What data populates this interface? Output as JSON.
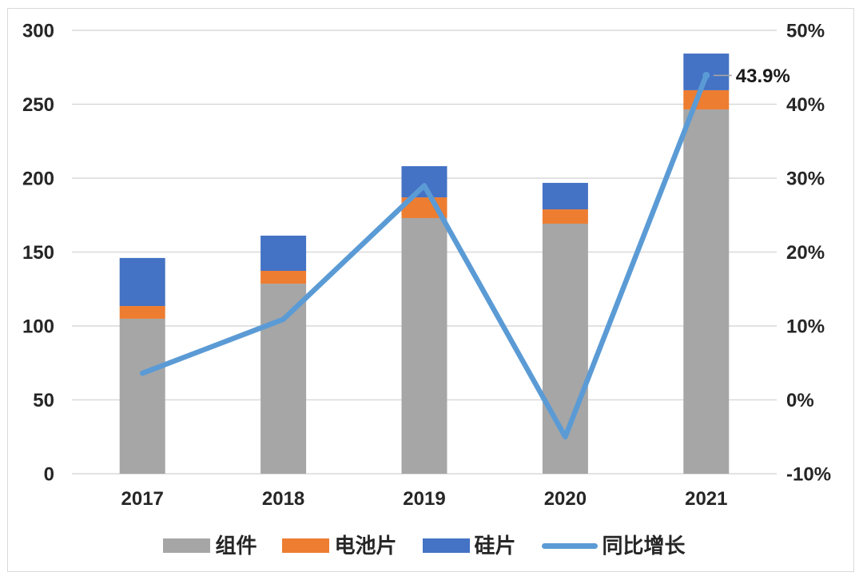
{
  "chart_data": {
    "type": "combo-stacked-bar-line",
    "categories": [
      "2017",
      "2018",
      "2019",
      "2020",
      "2021"
    ],
    "bar_series": [
      {
        "key": "module",
        "name": "组件",
        "color": "#a6a6a6",
        "values": [
          104.9,
          128.6,
          173.0,
          169.2,
          246.5
        ]
      },
      {
        "key": "cell",
        "name": "电池片",
        "color": "#ed7d31",
        "values": [
          8.6,
          8.7,
          14.0,
          9.7,
          13.0
        ]
      },
      {
        "key": "wafer",
        "name": "硅片",
        "color": "#4472c4",
        "values": [
          32.5,
          23.8,
          21.1,
          17.9,
          24.8
        ]
      }
    ],
    "line_series": {
      "key": "yoy-growth",
      "name": "同比增长",
      "color": "#5b9bd5",
      "values_pct": [
        3.6,
        10.9,
        29.0,
        -5.0,
        43.9
      ]
    },
    "left_axis": {
      "min": 0,
      "max": 300,
      "step": 50,
      "tick_labels": [
        "0",
        "50",
        "100",
        "150",
        "200",
        "250",
        "300"
      ]
    },
    "right_axis": {
      "min": -10,
      "max": 50,
      "step": 10,
      "tick_labels": [
        "-10%",
        "0%",
        "10%",
        "20%",
        "30%",
        "40%",
        "50%"
      ]
    },
    "annotation": {
      "text": "43.9%",
      "category": "2021",
      "series": "同比增长"
    },
    "grid": true,
    "legend_position": "bottom"
  },
  "style": {
    "grid_color": "#d9d9d9",
    "leader_color": "#a6a6a6",
    "background": "#ffffff",
    "border_color": "#d9d9d9"
  }
}
